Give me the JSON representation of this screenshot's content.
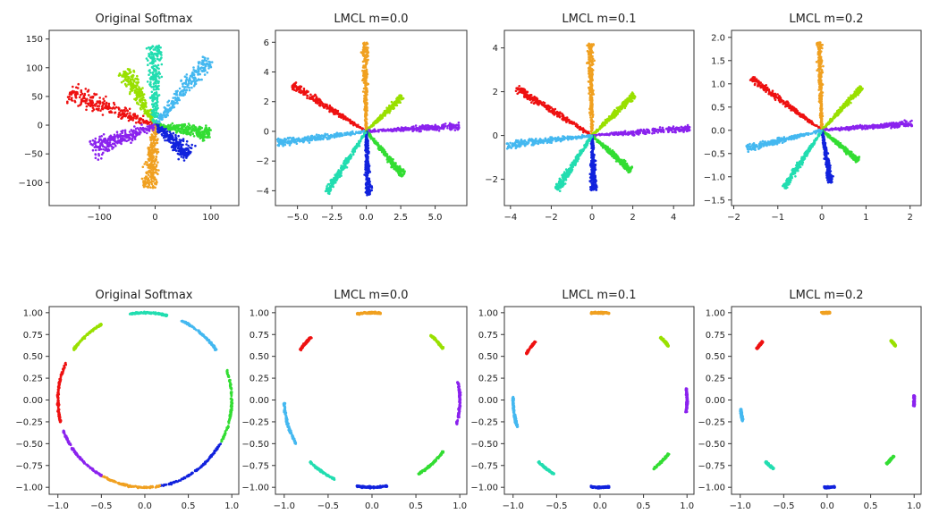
{
  "chart_data": [
    {
      "type": "scatter",
      "title": "Original Softmax",
      "xlim": [
        -190,
        150
      ],
      "ylim": [
        -140,
        165
      ],
      "xticks": [
        -100,
        0,
        100
      ],
      "xtick_labels": [
        "−100",
        "0",
        "100"
      ],
      "yticks": [
        -100,
        -50,
        0,
        50,
        100,
        150
      ],
      "ytick_labels": [
        "−100",
        "−50",
        "0",
        "50",
        "100",
        "150"
      ],
      "series": [
        {
          "color": "#ee1111",
          "angle_deg": 160,
          "length": 165,
          "width": 12
        },
        {
          "color": "#99e000",
          "angle_deg": 120,
          "length": 110,
          "width": 9
        },
        {
          "color": "#22ddb0",
          "angle_deg": 90,
          "length": 140,
          "width": 10
        },
        {
          "color": "#44b8f0",
          "angle_deg": 50,
          "length": 150,
          "width": 10
        },
        {
          "color": "#33dd33",
          "angle_deg": -8,
          "length": 100,
          "width": 9
        },
        {
          "color": "#1122dd",
          "angle_deg": -40,
          "length": 80,
          "width": 10
        },
        {
          "color": "#f0a020",
          "angle_deg": -95,
          "length": 110,
          "width": 10
        },
        {
          "color": "#8a22ee",
          "angle_deg": -160,
          "length": 120,
          "width": 12
        }
      ]
    },
    {
      "type": "scatter",
      "title": "LMCL m=0.0",
      "xlim": [
        -6.6,
        7.3
      ],
      "ylim": [
        -5.0,
        6.8
      ],
      "xticks": [
        -5,
        -2.5,
        0,
        2.5,
        5
      ],
      "xtick_labels": [
        "−5.0",
        "−2.5",
        "0.0",
        "2.5",
        "5.0"
      ],
      "yticks": [
        -4,
        -2,
        0,
        2,
        4,
        6
      ],
      "ytick_labels": [
        "−4",
        "−2",
        "0",
        "2",
        "4",
        "6"
      ],
      "series": [
        {
          "color": "#ee1111",
          "angle_deg": 150,
          "length": 6.2,
          "width": 0.18
        },
        {
          "color": "#f0a020",
          "angle_deg": 91,
          "length": 6.0,
          "width": 0.16
        },
        {
          "color": "#99e000",
          "angle_deg": 42,
          "length": 3.5,
          "width": 0.14
        },
        {
          "color": "#8a22ee",
          "angle_deg": 3,
          "length": 6.8,
          "width": 0.16
        },
        {
          "color": "#33dd33",
          "angle_deg": -48,
          "length": 4.0,
          "width": 0.15
        },
        {
          "color": "#1122dd",
          "angle_deg": -88,
          "length": 4.3,
          "width": 0.16
        },
        {
          "color": "#22ddb0",
          "angle_deg": -125,
          "length": 5.0,
          "width": 0.16
        },
        {
          "color": "#44b8f0",
          "angle_deg": -173,
          "length": 6.5,
          "width": 0.18
        }
      ]
    },
    {
      "type": "scatter",
      "title": "LMCL m=0.1",
      "xlim": [
        -4.3,
        5.0
      ],
      "ylim": [
        -3.2,
        4.8
      ],
      "xticks": [
        -4,
        -2,
        0,
        2,
        4
      ],
      "xtick_labels": [
        "−4",
        "−2",
        "0",
        "2",
        "4"
      ],
      "yticks": [
        -2,
        0,
        2,
        4
      ],
      "ytick_labels": [
        "−2",
        "0",
        "2",
        "4"
      ],
      "series": [
        {
          "color": "#ee1111",
          "angle_deg": 150,
          "length": 4.3,
          "width": 0.12
        },
        {
          "color": "#f0a020",
          "angle_deg": 91,
          "length": 4.2,
          "width": 0.11
        },
        {
          "color": "#99e000",
          "angle_deg": 42,
          "length": 2.8,
          "width": 0.1
        },
        {
          "color": "#8a22ee",
          "angle_deg": 4,
          "length": 4.8,
          "width": 0.11
        },
        {
          "color": "#33dd33",
          "angle_deg": -40,
          "length": 2.5,
          "width": 0.1
        },
        {
          "color": "#1122dd",
          "angle_deg": -88,
          "length": 2.5,
          "width": 0.11
        },
        {
          "color": "#22ddb0",
          "angle_deg": -125,
          "length": 3.0,
          "width": 0.11
        },
        {
          "color": "#44b8f0",
          "angle_deg": -174,
          "length": 4.2,
          "width": 0.12
        }
      ]
    },
    {
      "type": "scatter",
      "title": "LMCL m=0.2",
      "xlim": [
        -2.05,
        2.25
      ],
      "ylim": [
        -1.62,
        2.15
      ],
      "xticks": [
        -2,
        -1,
        0,
        1,
        2
      ],
      "xtick_labels": [
        "−2",
        "−1",
        "0",
        "1",
        "2"
      ],
      "yticks": [
        -1.5,
        -1.0,
        -0.5,
        0.0,
        0.5,
        1.0,
        1.5,
        2.0
      ],
      "ytick_labels": [
        "−1.5",
        "−1.0",
        "−0.5",
        "0.0",
        "0.5",
        "1.0",
        "1.5",
        "2.0"
      ],
      "series": [
        {
          "color": "#ee1111",
          "angle_deg": 145,
          "length": 1.95,
          "width": 0.05
        },
        {
          "color": "#f0a020",
          "angle_deg": 92,
          "length": 1.9,
          "width": 0.045
        },
        {
          "color": "#99e000",
          "angle_deg": 46,
          "length": 1.3,
          "width": 0.04
        },
        {
          "color": "#8a22ee",
          "angle_deg": 4,
          "length": 2.05,
          "width": 0.045
        },
        {
          "color": "#33dd33",
          "angle_deg": -38,
          "length": 1.05,
          "width": 0.04
        },
        {
          "color": "#1122dd",
          "angle_deg": -80,
          "length": 1.15,
          "width": 0.045
        },
        {
          "color": "#22ddb0",
          "angle_deg": -125,
          "length": 1.5,
          "width": 0.045
        },
        {
          "color": "#44b8f0",
          "angle_deg": -167,
          "length": 1.75,
          "width": 0.05
        }
      ]
    },
    {
      "type": "scatter",
      "title": "Original Softmax",
      "xlim": [
        -1.1,
        1.08
      ],
      "ylim": [
        -1.08,
        1.07
      ],
      "xticks": [
        -1.0,
        -0.5,
        0.0,
        0.5,
        1.0
      ],
      "xtick_labels": [
        "−1.0",
        "−0.5",
        "0.0",
        "0.5",
        "1.0"
      ],
      "yticks": [
        -1.0,
        -0.75,
        -0.5,
        -0.25,
        0.0,
        0.25,
        0.5,
        0.75,
        1.0
      ],
      "ytick_labels": [
        "−1.00",
        "−0.75",
        "−0.50",
        "−0.25",
        "0.00",
        "0.25",
        "0.50",
        "0.75",
        "1.00"
      ],
      "arcs": [
        {
          "color": "#ee1111",
          "from_deg": 155,
          "to_deg": 195
        },
        {
          "color": "#99e000",
          "from_deg": 120,
          "to_deg": 145
        },
        {
          "color": "#22ddb0",
          "from_deg": 75,
          "to_deg": 100
        },
        {
          "color": "#44b8f0",
          "from_deg": 35,
          "to_deg": 65
        },
        {
          "color": "#33dd33",
          "from_deg": -30,
          "to_deg": 20
        },
        {
          "color": "#1122dd",
          "from_deg": -80,
          "to_deg": -30
        },
        {
          "color": "#f0a020",
          "from_deg": -120,
          "to_deg": -80
        },
        {
          "color": "#8a22ee",
          "from_deg": -160,
          "to_deg": -120
        }
      ]
    },
    {
      "type": "scatter",
      "title": "LMCL m=0.0",
      "xlim": [
        -1.1,
        1.08
      ],
      "ylim": [
        -1.08,
        1.07
      ],
      "xticks": [
        -1.0,
        -0.5,
        0.0,
        0.5,
        1.0
      ],
      "xtick_labels": [
        "−1.0",
        "−0.5",
        "0.0",
        "0.5",
        "1.0"
      ],
      "yticks": [
        -1.0,
        -0.75,
        -0.5,
        -0.25,
        0.0,
        0.25,
        0.5,
        0.75,
        1.0
      ],
      "ytick_labels": [
        "−1.00",
        "−0.75",
        "−0.50",
        "−0.25",
        "0.00",
        "0.25",
        "0.50",
        "0.75",
        "1.00"
      ],
      "arcs": [
        {
          "color": "#ee1111",
          "from_deg": 134,
          "to_deg": 145
        },
        {
          "color": "#f0a020",
          "from_deg": 84,
          "to_deg": 100
        },
        {
          "color": "#99e000",
          "from_deg": 36,
          "to_deg": 48
        },
        {
          "color": "#8a22ee",
          "from_deg": -16,
          "to_deg": 12
        },
        {
          "color": "#33dd33",
          "from_deg": -58,
          "to_deg": -36
        },
        {
          "color": "#1122dd",
          "from_deg": -100,
          "to_deg": -80
        },
        {
          "color": "#22ddb0",
          "from_deg": -135,
          "to_deg": -115
        },
        {
          "color": "#44b8f0",
          "from_deg": -178,
          "to_deg": -150
        }
      ]
    },
    {
      "type": "scatter",
      "title": "LMCL m=0.1",
      "xlim": [
        -1.1,
        1.08
      ],
      "ylim": [
        -1.08,
        1.07
      ],
      "xticks": [
        -1.0,
        -0.5,
        0.0,
        0.5,
        1.0
      ],
      "xtick_labels": [
        "−1.0",
        "−0.5",
        "0.0",
        "0.5",
        "1.0"
      ],
      "yticks": [
        -1.0,
        -0.75,
        -0.5,
        -0.25,
        0.0,
        0.25,
        0.5,
        0.75,
        1.0
      ],
      "ytick_labels": [
        "−1.00",
        "−0.75",
        "−0.50",
        "−0.25",
        "0.00",
        "0.25",
        "0.50",
        "0.75",
        "1.00"
      ],
      "arcs": [
        {
          "color": "#ee1111",
          "from_deg": 138,
          "to_deg": 148
        },
        {
          "color": "#f0a020",
          "from_deg": 84,
          "to_deg": 96
        },
        {
          "color": "#99e000",
          "from_deg": 38,
          "to_deg": 46
        },
        {
          "color": "#8a22ee",
          "from_deg": -8,
          "to_deg": 8
        },
        {
          "color": "#33dd33",
          "from_deg": -52,
          "to_deg": -38
        },
        {
          "color": "#1122dd",
          "from_deg": -96,
          "to_deg": -84
        },
        {
          "color": "#22ddb0",
          "from_deg": -135,
          "to_deg": -122
        },
        {
          "color": "#44b8f0",
          "from_deg": -182,
          "to_deg": -162
        }
      ]
    },
    {
      "type": "scatter",
      "title": "LMCL m=0.2",
      "xlim": [
        -1.1,
        1.08
      ],
      "ylim": [
        -1.08,
        1.07
      ],
      "xticks": [
        -1.0,
        -0.5,
        0.0,
        0.5,
        1.0
      ],
      "xtick_labels": [
        "−1.0",
        "−0.5",
        "0.0",
        "0.5",
        "1.0"
      ],
      "yticks": [
        -1.0,
        -0.75,
        -0.5,
        -0.25,
        0.0,
        0.25,
        0.5,
        0.75,
        1.0
      ],
      "ytick_labels": [
        "−1.00",
        "−0.75",
        "−0.50",
        "−0.25",
        "0.00",
        "0.25",
        "0.50",
        "0.75",
        "1.00"
      ],
      "arcs": [
        {
          "color": "#ee1111",
          "from_deg": 138,
          "to_deg": 144
        },
        {
          "color": "#f0a020",
          "from_deg": 88,
          "to_deg": 94
        },
        {
          "color": "#99e000",
          "from_deg": 38,
          "to_deg": 43
        },
        {
          "color": "#8a22ee",
          "from_deg": -4,
          "to_deg": 3
        },
        {
          "color": "#33dd33",
          "from_deg": -47,
          "to_deg": -40
        },
        {
          "color": "#1122dd",
          "from_deg": -92,
          "to_deg": -85
        },
        {
          "color": "#22ddb0",
          "from_deg": -135,
          "to_deg": -128
        },
        {
          "color": "#44b8f0",
          "from_deg": -174,
          "to_deg": -166
        }
      ]
    }
  ]
}
